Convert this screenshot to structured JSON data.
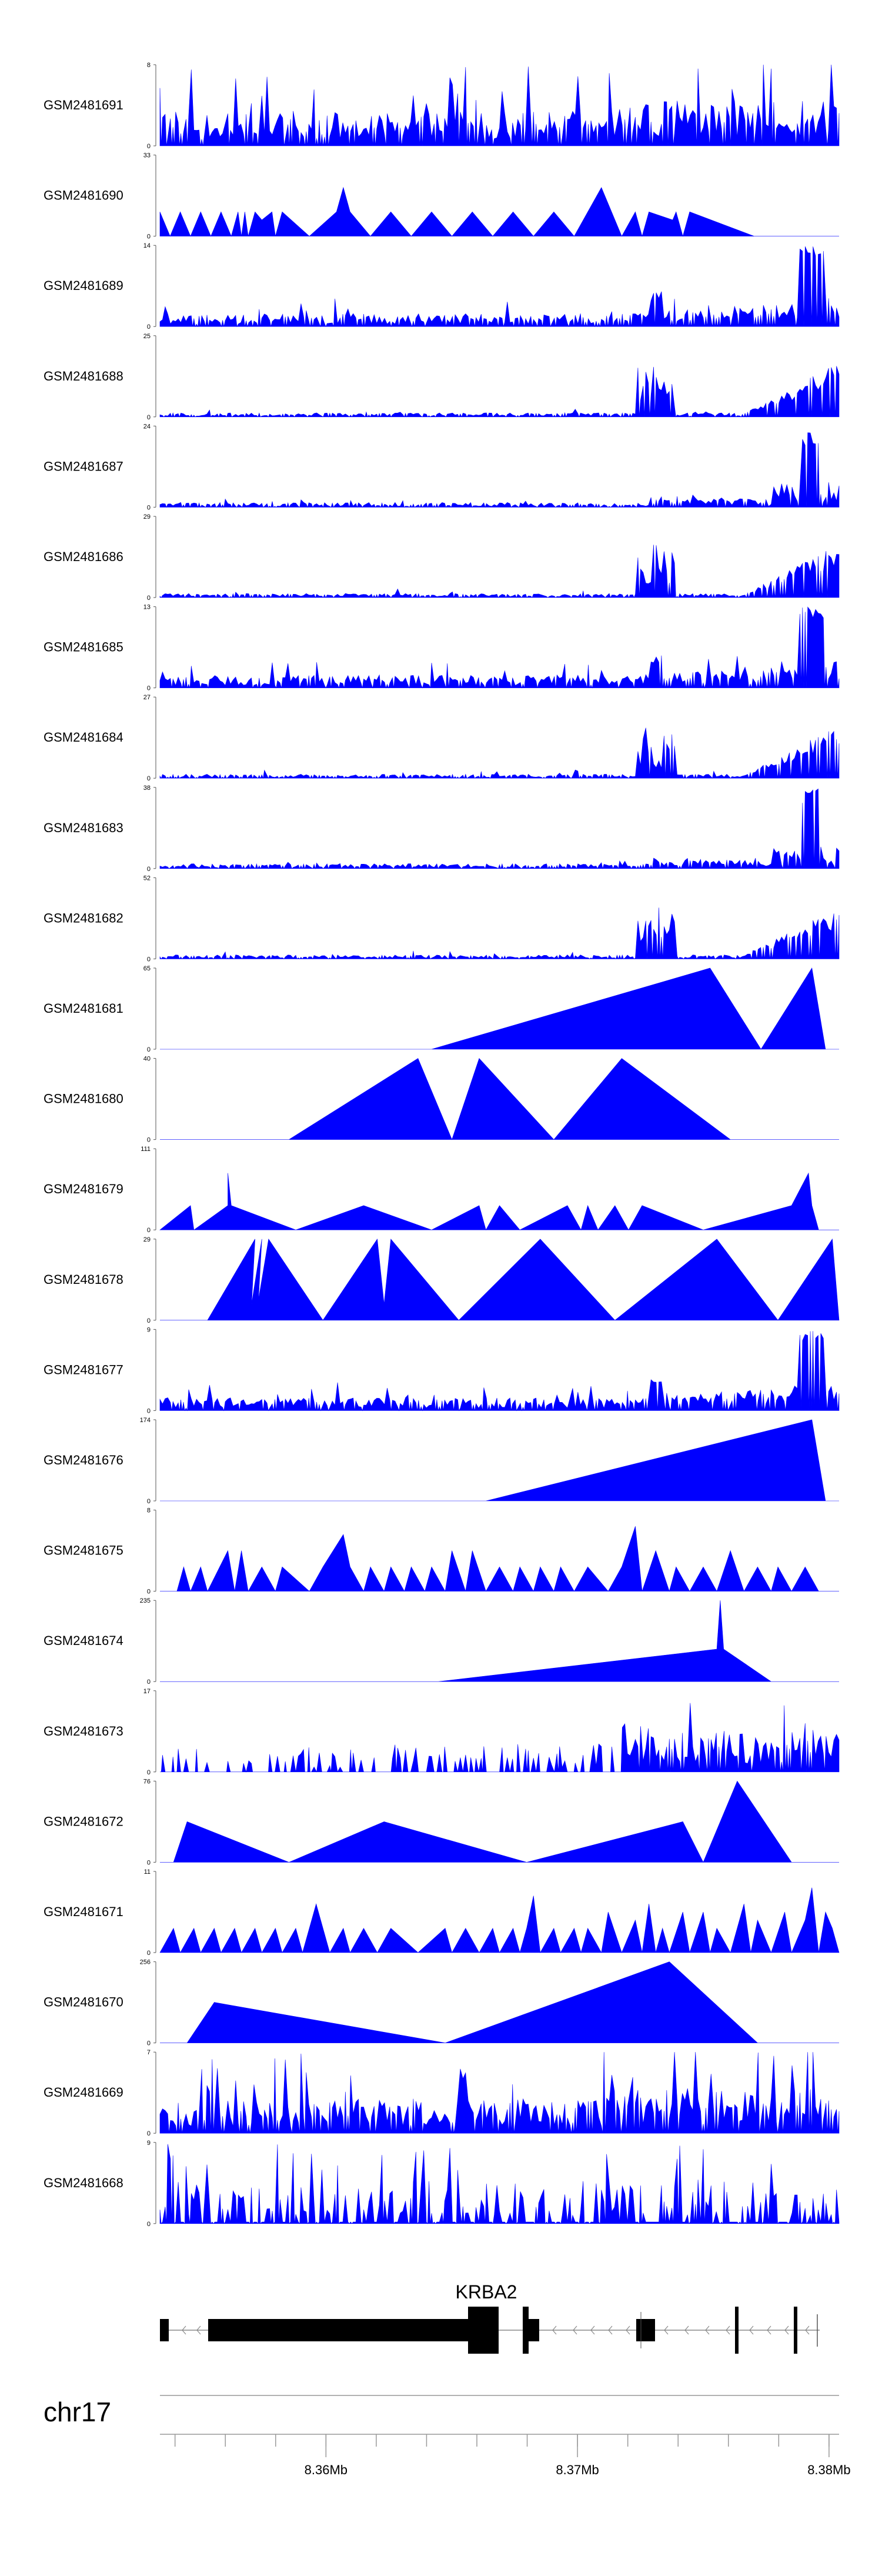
{
  "chart_data": {
    "type": "area",
    "chromosome": "chr17",
    "gene": "KRBA2",
    "x_axis": {
      "unit": "Mb",
      "range": [
        8.3534,
        8.3804
      ],
      "ticks": [
        8.36,
        8.37,
        8.38
      ],
      "tick_labels": [
        "8.36Mb",
        "8.37Mb",
        "8.38Mb"
      ]
    },
    "tracks": [
      {
        "name": "GSM2481691",
        "ymax": 8,
        "profile": "dense_uniform",
        "seed": 91
      },
      {
        "name": "GSM2481690",
        "ymax": 33,
        "profile": "sparse_triangles",
        "seed": 90
      },
      {
        "name": "GSM2481689",
        "ymax": 14,
        "profile": "dense_right_peak",
        "seed": 89
      },
      {
        "name": "GSM2481688",
        "ymax": 25,
        "profile": "right_ramp",
        "seed": 88
      },
      {
        "name": "GSM2481687",
        "ymax": 24,
        "profile": "right_spike",
        "seed": 87
      },
      {
        "name": "GSM2481686",
        "ymax": 29,
        "profile": "right_ramp",
        "seed": 86
      },
      {
        "name": "GSM2481685",
        "ymax": 13,
        "profile": "dense_right_peak",
        "seed": 85
      },
      {
        "name": "GSM2481684",
        "ymax": 27,
        "profile": "right_ramp",
        "seed": 84
      },
      {
        "name": "GSM2481683",
        "ymax": 38,
        "profile": "right_spike",
        "seed": 83
      },
      {
        "name": "GSM2481682",
        "ymax": 52,
        "profile": "right_ramp",
        "seed": 82
      },
      {
        "name": "GSM2481681",
        "ymax": 65,
        "profile": "big_triangles_a",
        "seed": 81
      },
      {
        "name": "GSM2481680",
        "ymax": 40,
        "profile": "big_triangles_b",
        "seed": 80
      },
      {
        "name": "GSM2481679",
        "ymax": 111,
        "profile": "low_triangles_spikes",
        "seed": 79
      },
      {
        "name": "GSM2481678",
        "ymax": 29,
        "profile": "tall_triangles",
        "seed": 78
      },
      {
        "name": "GSM2481677",
        "ymax": 9,
        "profile": "dense_right_peak",
        "seed": 77
      },
      {
        "name": "GSM2481676",
        "ymax": 174,
        "profile": "single_ramp",
        "seed": 76
      },
      {
        "name": "GSM2481675",
        "ymax": 8,
        "profile": "medium_triangles",
        "seed": 75
      },
      {
        "name": "GSM2481674",
        "ymax": 235,
        "profile": "ramp_spike",
        "seed": 74
      },
      {
        "name": "GSM2481673",
        "ymax": 17,
        "profile": "medium_right_dense",
        "seed": 73
      },
      {
        "name": "GSM2481672",
        "ymax": 76,
        "profile": "wide_triangles",
        "seed": 72
      },
      {
        "name": "GSM2481671",
        "ymax": 11,
        "profile": "medium_triangles_dense",
        "seed": 71
      },
      {
        "name": "GSM2481670",
        "ymax": 256,
        "profile": "two_slopes",
        "seed": 70
      },
      {
        "name": "GSM2481669",
        "ymax": 7,
        "profile": "dense_uniform",
        "seed": 69
      },
      {
        "name": "GSM2481668",
        "ymax": 9,
        "profile": "dense_spiky",
        "seed": 68
      }
    ]
  }
}
